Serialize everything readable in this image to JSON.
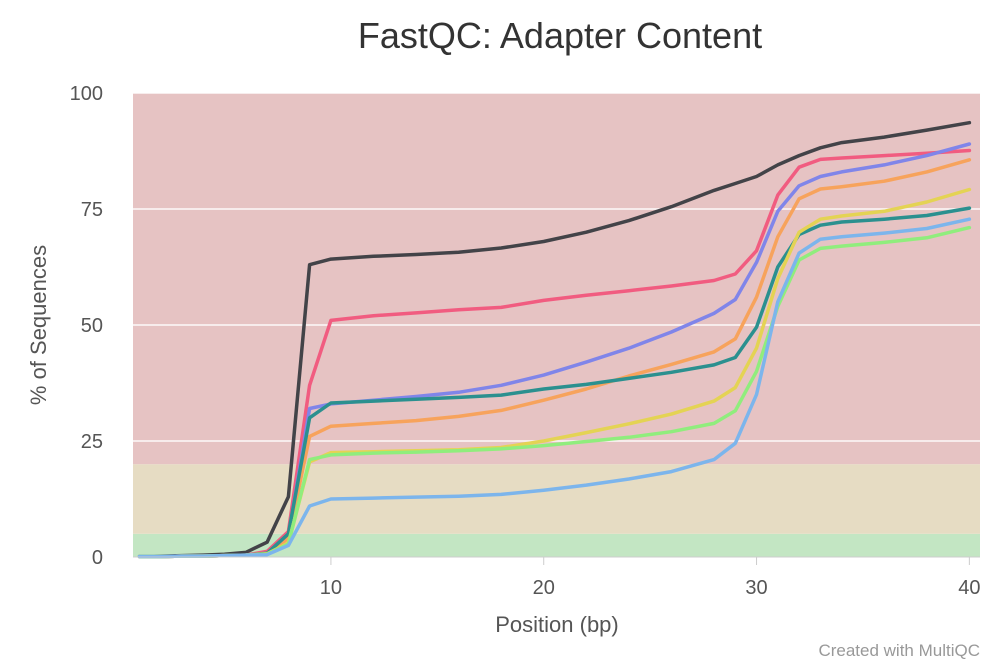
{
  "chart_data": {
    "type": "line",
    "title": "FastQC: Adapter Content",
    "xlabel": "Position (bp)",
    "ylabel": "% of Sequences",
    "xlim": [
      0.7,
      40.5
    ],
    "ylim": [
      0,
      100
    ],
    "xticks": [
      10,
      20,
      30,
      40
    ],
    "yticks": [
      0,
      25,
      50,
      75,
      100
    ],
    "grid": true,
    "legend": "none",
    "bands": [
      {
        "from": 0,
        "to": 5,
        "color": "#c3e6c3"
      },
      {
        "from": 5,
        "to": 20,
        "color": "#e6dcc3"
      },
      {
        "from": 20,
        "to": 100,
        "color": "#e6c3c3"
      }
    ],
    "x": [
      1,
      2,
      3,
      4,
      5,
      6,
      7,
      8,
      9,
      10,
      12,
      14,
      16,
      18,
      20,
      22,
      24,
      26,
      28,
      29,
      30,
      31,
      32,
      33,
      34,
      36,
      38,
      40
    ],
    "series": [
      {
        "color": "#434348",
        "values": [
          0.1,
          0.2,
          0.3,
          0.4,
          0.6,
          1.0,
          3.2,
          13,
          63,
          64.2,
          64.8,
          65.2,
          65.7,
          66.6,
          68,
          70,
          72.5,
          75.5,
          79,
          80.5,
          82,
          84.5,
          86.5,
          88.2,
          89.3,
          90.5,
          92,
          93.6
        ]
      },
      {
        "color": "#f15c80",
        "values": [
          0.1,
          0.1,
          0.2,
          0.2,
          0.3,
          0.4,
          1.2,
          5.5,
          37,
          51,
          52,
          52.6,
          53.3,
          53.8,
          55.3,
          56.4,
          57.4,
          58.4,
          59.6,
          61,
          66,
          78,
          84,
          85.7,
          86,
          86.5,
          87,
          87.6
        ]
      },
      {
        "color": "#8085e9",
        "values": [
          0.1,
          0.1,
          0.2,
          0.2,
          0.3,
          0.4,
          0.8,
          4.5,
          32,
          33,
          33.8,
          34.6,
          35.5,
          37,
          39.2,
          42,
          45,
          48.5,
          52.5,
          55.5,
          63.5,
          74.5,
          80,
          82,
          83,
          84.5,
          86.5,
          89
        ]
      },
      {
        "color": "#f7a35c",
        "values": [
          0.1,
          0.1,
          0.2,
          0.2,
          0.3,
          0.4,
          0.8,
          4,
          26,
          28.2,
          28.8,
          29.4,
          30.3,
          31.6,
          33.8,
          36.2,
          39,
          41.5,
          44.2,
          47,
          56,
          69,
          77.2,
          79.3,
          79.8,
          81,
          83,
          85.6
        ]
      },
      {
        "color": "#2b908f",
        "values": [
          0.1,
          0.1,
          0.2,
          0.2,
          0.3,
          0.4,
          0.8,
          5,
          30,
          33.2,
          33.6,
          34,
          34.4,
          34.9,
          36.2,
          37.2,
          38.5,
          39.8,
          41.4,
          43,
          49.5,
          62.5,
          69.5,
          71.5,
          72.2,
          72.8,
          73.6,
          75.2
        ]
      },
      {
        "color": "#e4d354",
        "values": [
          0.1,
          0.1,
          0.2,
          0.2,
          0.3,
          0.4,
          0.7,
          3,
          20.5,
          22.5,
          22.7,
          22.9,
          23.1,
          23.6,
          25,
          26.8,
          28.7,
          30.8,
          33.6,
          36.5,
          45,
          60,
          70,
          72.8,
          73.5,
          74.5,
          76.5,
          79.2
        ]
      },
      {
        "color": "#90ed7d",
        "values": [
          0.1,
          0.1,
          0.2,
          0.2,
          0.3,
          0.4,
          0.6,
          2.8,
          21,
          22,
          22.4,
          22.6,
          22.9,
          23.3,
          24,
          24.9,
          25.8,
          27,
          28.8,
          31.5,
          40,
          54,
          64,
          66.5,
          67,
          67.8,
          68.8,
          71
        ]
      },
      {
        "color": "#7cb5ec",
        "values": [
          0.1,
          0.1,
          0.2,
          0.2,
          0.3,
          0.4,
          0.5,
          2.5,
          11,
          12.5,
          12.7,
          12.9,
          13.1,
          13.5,
          14.4,
          15.5,
          16.8,
          18.4,
          21,
          24.5,
          35,
          55,
          65.5,
          68.5,
          69,
          69.8,
          70.8,
          72.8
        ]
      }
    ]
  },
  "credit": "Created with MultiQC"
}
